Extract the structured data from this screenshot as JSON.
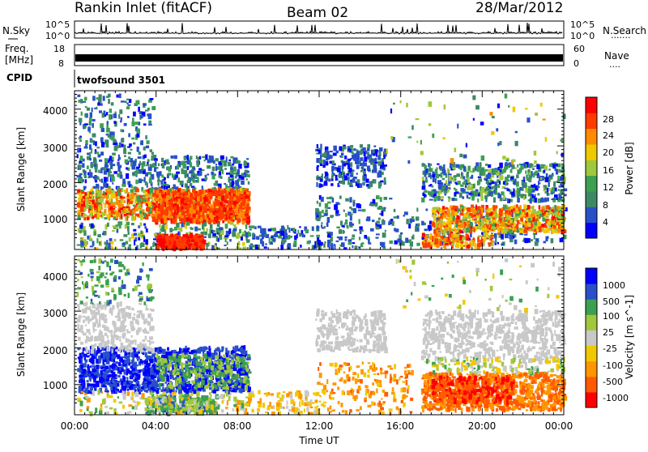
{
  "header": {
    "station": "Rankin Inlet (fitACF)",
    "beam": "Beam 02",
    "date": "28/Mar/2012"
  },
  "noise_panel": {
    "left_label": "N.Sky",
    "right_label": "N.Search",
    "right_dots": "·······",
    "left_ticks": [
      "10^5",
      "10^0"
    ],
    "right_ticks": [
      "10^5",
      "10^0"
    ]
  },
  "freq_panel": {
    "left_label_1": "Freq.",
    "left_label_2": "[MHz]",
    "right_label": "Nave",
    "right_dots": "····",
    "left_ticks": [
      "18",
      "8"
    ],
    "right_ticks": [
      "60",
      "0"
    ]
  },
  "cpid": {
    "label": "CPID",
    "value": "twofsound 3501"
  },
  "colors": {
    "power": [
      "#0000ff",
      "#2850c8",
      "#3c8a64",
      "#3ca050",
      "#a0c83c",
      "#f0c800",
      "#ff8c00",
      "#ff3c00",
      "#ff0000"
    ],
    "velocity": [
      "#ff0000",
      "#ff5a00",
      "#ff9600",
      "#f0c800",
      "#c8c8c8",
      "#a0c83c",
      "#3ca050",
      "#2850c8",
      "#0000ff"
    ]
  },
  "chart_data": [
    {
      "type": "heatmap",
      "name": "power",
      "xlabel": "",
      "ylabel": "Slant Range [km]",
      "x_range": [
        "00:00",
        "24:00"
      ],
      "ylim": [
        180,
        4500
      ],
      "y_ticks": [
        "4000",
        "3000",
        "2000",
        "1000"
      ],
      "colorbar_label": "Power [dB]",
      "colorbar_ticks": [
        "28",
        "24",
        "20",
        "16",
        "12",
        "8",
        "4"
      ],
      "regions": [
        {
          "t": [
            0.0,
            8.5
          ],
          "r": [
            900,
            2000
          ],
          "level": "20-28"
        },
        {
          "t": [
            3.5,
            8.5
          ],
          "r": [
            800,
            1800
          ],
          "level": "24-28+"
        },
        {
          "t": [
            0.5,
            4.0
          ],
          "r": [
            1800,
            2600
          ],
          "level": "4-12"
        },
        {
          "t": [
            4.0,
            6.5
          ],
          "r": [
            180,
            600
          ],
          "level": "28+"
        },
        {
          "t": [
            12.0,
            15.0
          ],
          "r": [
            1800,
            3000
          ],
          "level": "4-8"
        },
        {
          "t": [
            16.5,
            24.0
          ],
          "r": [
            600,
            1400
          ],
          "level": "12-28"
        },
        {
          "t": [
            17.0,
            24.0
          ],
          "r": [
            1600,
            2500
          ],
          "level": "4-12"
        }
      ]
    },
    {
      "type": "heatmap",
      "name": "velocity",
      "xlabel": "Time UT",
      "ylabel": "Slant Range [km]",
      "x_ticks": [
        "00:00",
        "04:00",
        "08:00",
        "12:00",
        "16:00",
        "20:00",
        "00:00"
      ],
      "ylim": [
        180,
        4500
      ],
      "y_ticks": [
        "4000",
        "3000",
        "2000",
        "1000"
      ],
      "colorbar_label": "Velocity [m s^-1]",
      "colorbar_ticks": [
        "1000",
        "500",
        "100",
        "25",
        "-25",
        "-100",
        "-500",
        "-1000"
      ],
      "regions": [
        {
          "t": [
            0.0,
            8.5
          ],
          "r": [
            800,
            2000
          ],
          "level": "500-1000"
        },
        {
          "t": [
            0.5,
            4.0
          ],
          "r": [
            1900,
            3000
          ],
          "level": "-25 to 25"
        },
        {
          "t": [
            12.0,
            15.0
          ],
          "r": [
            1800,
            3000
          ],
          "level": "-25 to 25"
        },
        {
          "t": [
            17.0,
            24.0
          ],
          "r": [
            300,
            1300
          ],
          "level": "-500 to -100"
        },
        {
          "t": [
            17.0,
            24.0
          ],
          "r": [
            1800,
            3000
          ],
          "level": "-25 to 25"
        }
      ]
    }
  ]
}
